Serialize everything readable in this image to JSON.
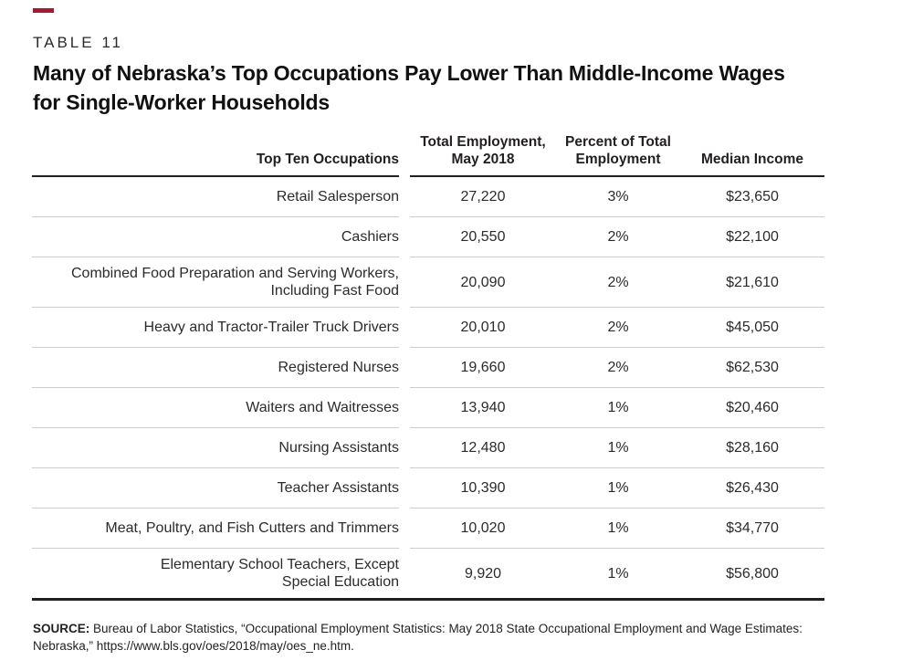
{
  "page": {
    "kicker": "TABLE 11",
    "title_line1": "Many of Nebraska’s Top Occupations Pay Lower Than Middle-Income Wages",
    "title_line2": "for Single-Worker Households",
    "accent_color": "#a6192e"
  },
  "table": {
    "columns": {
      "occupations": "Top Ten Occupations",
      "employment": "Total Employment,\nMay 2018",
      "percent": "Percent of Total\nEmployment",
      "income": "Median Income"
    },
    "rows": [
      {
        "occupation": "Retail Salesperson",
        "employment": "27,220",
        "percent": "3%",
        "income": "$23,650"
      },
      {
        "occupation": "Cashiers",
        "employment": "20,550",
        "percent": "2%",
        "income": "$22,100"
      },
      {
        "occupation": "Combined Food Preparation and Serving Workers,\nIncluding Fast Food",
        "employment": "20,090",
        "percent": "2%",
        "income": "$21,610"
      },
      {
        "occupation": "Heavy and Tractor-Trailer Truck Drivers",
        "employment": "20,010",
        "percent": "2%",
        "income": "$45,050"
      },
      {
        "occupation": "Registered Nurses",
        "employment": "19,660",
        "percent": "2%",
        "income": "$62,530"
      },
      {
        "occupation": "Waiters and Waitresses",
        "employment": "13,940",
        "percent": "1%",
        "income": "$20,460"
      },
      {
        "occupation": "Nursing Assistants",
        "employment": "12,480",
        "percent": "1%",
        "income": "$28,160"
      },
      {
        "occupation": "Teacher Assistants",
        "employment": "10,390",
        "percent": "1%",
        "income": "$26,430"
      },
      {
        "occupation": "Meat, Poultry, and Fish Cutters and Trimmers",
        "employment": "10,020",
        "percent": "1%",
        "income": "$34,770"
      },
      {
        "occupation": "Elementary School Teachers, Except\nSpecial Education",
        "employment": "9,920",
        "percent": "1%",
        "income": "$56,800"
      }
    ]
  },
  "source": {
    "label": "SOURCE:",
    "text": " Bureau of Labor Statistics, “Occupational Employment Statistics: May 2018 State Occupational Employment and Wage Estimates: Nebraska,” https://www.bls.gov/oes/2018/may/oes_ne.htm."
  }
}
